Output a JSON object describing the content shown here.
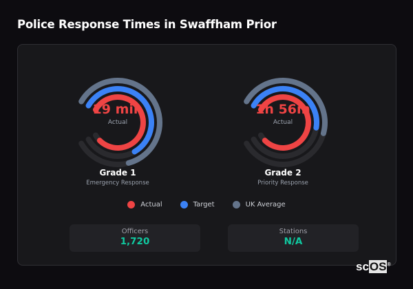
{
  "title": "Police Response Times in Swaffham Prior",
  "colors": {
    "actual": "#ef4444",
    "target": "#3b82f6",
    "uk_average": "#64748b",
    "track": "#2a2a2e",
    "stat_value": "#10c9a0"
  },
  "gauges": [
    {
      "value": "19 min",
      "value_label": "Actual",
      "name": "Grade 1",
      "subtitle": "Emergency Response",
      "fill": {
        "uk_average": 0.75,
        "target": 0.7,
        "actual": 0.95
      }
    },
    {
      "value": "1h 56m",
      "value_label": "Actual",
      "name": "Grade 2",
      "subtitle": "Priority Response",
      "fill": {
        "uk_average": 0.55,
        "target": 0.53,
        "actual": 0.95
      }
    }
  ],
  "legend": [
    {
      "label": "Actual",
      "color": "#ef4444"
    },
    {
      "label": "Target",
      "color": "#3b82f6"
    },
    {
      "label": "UK Average",
      "color": "#64748b"
    }
  ],
  "stats": [
    {
      "label": "Officers",
      "value": "1,720"
    },
    {
      "label": "Stations",
      "value": "N/A"
    }
  ],
  "logo": {
    "text_a": "sc",
    "text_b": "OS",
    "mark": "®"
  }
}
